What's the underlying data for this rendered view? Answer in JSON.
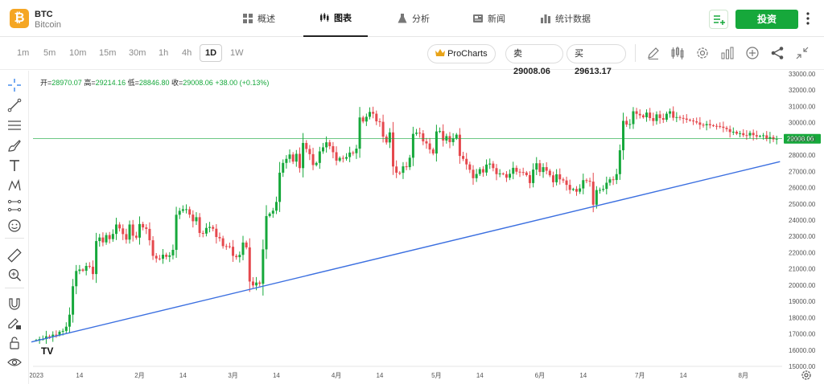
{
  "header": {
    "coin_glyph": "₿",
    "symbol": "BTC",
    "name": "Bitcoin",
    "tabs": [
      {
        "label": "概述",
        "icon": "grid-icon"
      },
      {
        "label": "图表",
        "icon": "candlestick-icon",
        "active": true
      },
      {
        "label": "分析",
        "icon": "flask-icon"
      },
      {
        "label": "新闻",
        "icon": "newspaper-icon"
      },
      {
        "label": "统计数据",
        "icon": "bar-chart-icon"
      }
    ],
    "invest_label": "投资"
  },
  "toolbar": {
    "timeframes": [
      "1m",
      "5m",
      "10m",
      "15m",
      "30m",
      "1h",
      "4h",
      "1D",
      "1W"
    ],
    "selected_timeframe": "1D",
    "procharts_label": "ProCharts",
    "sell_label": "卖",
    "sell_price": "29008.06",
    "buy_label": "买",
    "buy_price": "29613.17",
    "icons": [
      "pencil-icon",
      "candles-icon",
      "gear-icon",
      "indicators-icon",
      "plus-circle-icon",
      "share-icon",
      "collapse-icon"
    ]
  },
  "drawing_tools": [
    "crosshair-icon",
    "trend-line-icon",
    "horizontal-lines-icon",
    "brush-icon",
    "text-icon",
    "pattern-icon",
    "projection-icon",
    "emoji-icon",
    "ruler-icon",
    "zoom-in-icon",
    "magnet-icon",
    "pencil-lock-icon",
    "lock-icon",
    "eye-icon"
  ],
  "ohlc": {
    "open_label": "开=",
    "open": "28970.07",
    "high_label": "高=",
    "high": "29214.16",
    "low_label": "低=",
    "low": "28846.80",
    "close_label": "收=",
    "close": "29008.06",
    "change": "+38.00 (+0.13%)"
  },
  "colors": {
    "up": "#16a83b",
    "down": "#e5484d",
    "trend_line": "#3b6fe0",
    "price_line": "#16a83b",
    "accent": "#16a83b"
  },
  "chart_data": {
    "type": "candlestick",
    "interval": "1D",
    "ylim": [
      15000,
      33000
    ],
    "y_ticks": [
      "33000.00",
      "32000.00",
      "31000.00",
      "30000.00",
      "29000.00",
      "28000.00",
      "27000.00",
      "26000.00",
      "25000.00",
      "24000.00",
      "23000.00",
      "22000.00",
      "21000.00",
      "20000.00",
      "19000.00",
      "18000.00",
      "17000.00",
      "16000.00",
      "15000.00"
    ],
    "y_tick_values": [
      33000,
      32000,
      31000,
      30000,
      29000,
      28000,
      27000,
      26000,
      25000,
      24000,
      23000,
      22000,
      21000,
      20000,
      19000,
      18000,
      17000,
      16000,
      15000
    ],
    "x_ticks": [
      {
        "label": "2023",
        "day": 0
      },
      {
        "label": "14",
        "day": 13
      },
      {
        "label": "2月",
        "day": 31
      },
      {
        "label": "14",
        "day": 44
      },
      {
        "label": "3月",
        "day": 59
      },
      {
        "label": "14",
        "day": 72
      },
      {
        "label": "4月",
        "day": 90
      },
      {
        "label": "14",
        "day": 103
      },
      {
        "label": "5月",
        "day": 120
      },
      {
        "label": "14",
        "day": 133
      },
      {
        "label": "6月",
        "day": 151
      },
      {
        "label": "14",
        "day": 164
      },
      {
        "label": "7月",
        "day": 181
      },
      {
        "label": "14",
        "day": 194
      },
      {
        "label": "8月",
        "day": 212
      }
    ],
    "closes": [
      16620,
      16680,
      16680,
      16850,
      16830,
      16950,
      16940,
      17130,
      17180,
      17440,
      18180,
      19930,
      20870,
      20960,
      20880,
      21180,
      21130,
      20680,
      22710,
      22930,
      22630,
      23080,
      22830,
      23150,
      23730,
      23490,
      23140,
      22800,
      23730,
      23040,
      22920,
      23760,
      23550,
      23460,
      22760,
      21800,
      21640,
      21620,
      21870,
      21740,
      21830,
      22170,
      24330,
      24570,
      24670,
      24670,
      24340,
      23930,
      24180,
      23210,
      23170,
      23520,
      23580,
      23470,
      22960,
      22880,
      22400,
      22390,
      22360,
      21800,
      21720,
      21860,
      22620,
      22320,
      20220,
      19980,
      20160,
      20080,
      22200,
      24250,
      24400,
      24580,
      25120,
      26920,
      27520,
      27770,
      28040,
      27600,
      28080,
      27200,
      28750,
      28380,
      28060,
      27390,
      27520,
      28230,
      28480,
      28790,
      28550,
      28180,
      27660,
      27830,
      27780,
      27880,
      28160,
      28120,
      28400,
      30320,
      30070,
      30360,
      30660,
      30550,
      30080,
      30050,
      29140,
      28780,
      29400,
      27300,
      26920,
      26910,
      27310,
      27260,
      27840,
      29310,
      29380,
      29340,
      28850,
      28720,
      28350,
      28100,
      29460,
      29480,
      28900,
      29170,
      28800,
      29040,
      29260,
      27950,
      27770,
      27430,
      27100,
      26580,
      26840,
      27140,
      26930,
      27420,
      27480,
      27200,
      26830,
      26870,
      26830,
      26610,
      26850,
      27220,
      26980,
      26960,
      26930,
      26770,
      26280,
      27110,
      27500,
      26960,
      27260,
      27040,
      26760,
      26330,
      26820,
      26510,
      26440,
      26170,
      25860,
      25920,
      25750,
      25950,
      26460,
      26420,
      26370,
      24950,
      25850,
      25860,
      25920,
      26300,
      26510,
      26470,
      26830,
      28300,
      30110,
      29880,
      29910,
      30700,
      30540,
      30450,
      30330,
      30620,
      30280,
      30100,
      30510,
      30280,
      30180,
      30550,
      30700,
      30300,
      30340,
      30290,
      30250,
      30180,
      30130,
      30080,
      30010,
      29870,
      29840,
      29910,
      29840,
      29800,
      29790,
      29750,
      29680,
      29600,
      29420,
      29440,
      29320,
      29350,
      29230,
      29210,
      29370,
      29230,
      29150,
      29180,
      29220,
      29000,
      29110,
      28970,
      29008
    ],
    "last_price": "29008.06",
    "trend_line": [
      {
        "date": "2023-01-01",
        "price": 16500
      },
      {
        "date": "2023-08-12",
        "price": 27600
      }
    ]
  }
}
